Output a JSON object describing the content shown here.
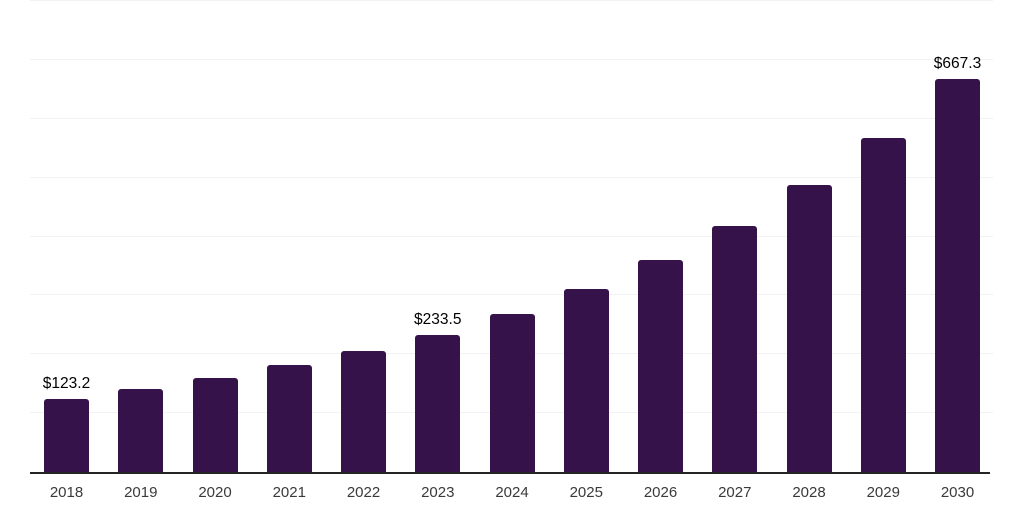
{
  "chart_data": {
    "type": "bar",
    "categories": [
      "2018",
      "2019",
      "2020",
      "2021",
      "2022",
      "2023",
      "2024",
      "2025",
      "2026",
      "2027",
      "2028",
      "2029",
      "2030"
    ],
    "values": [
      123.2,
      141,
      159,
      181,
      206,
      233.5,
      269,
      311,
      360,
      418,
      487,
      568,
      667.3
    ],
    "bar_labels": [
      "$123.2",
      null,
      null,
      null,
      null,
      "$233.5",
      null,
      null,
      null,
      null,
      null,
      null,
      "$667.3"
    ],
    "ylim": [
      0,
      800
    ],
    "gridline_step": 100,
    "grid": true,
    "legend": false,
    "y_axis_tick_labels_visible": false,
    "colors": {
      "bar": "#35124a",
      "axis_line": "#252525",
      "gridline": "#f2f1f3",
      "data_label": "#000000",
      "tick_label": "#3a3a3a",
      "background": "#ffffff"
    }
  }
}
